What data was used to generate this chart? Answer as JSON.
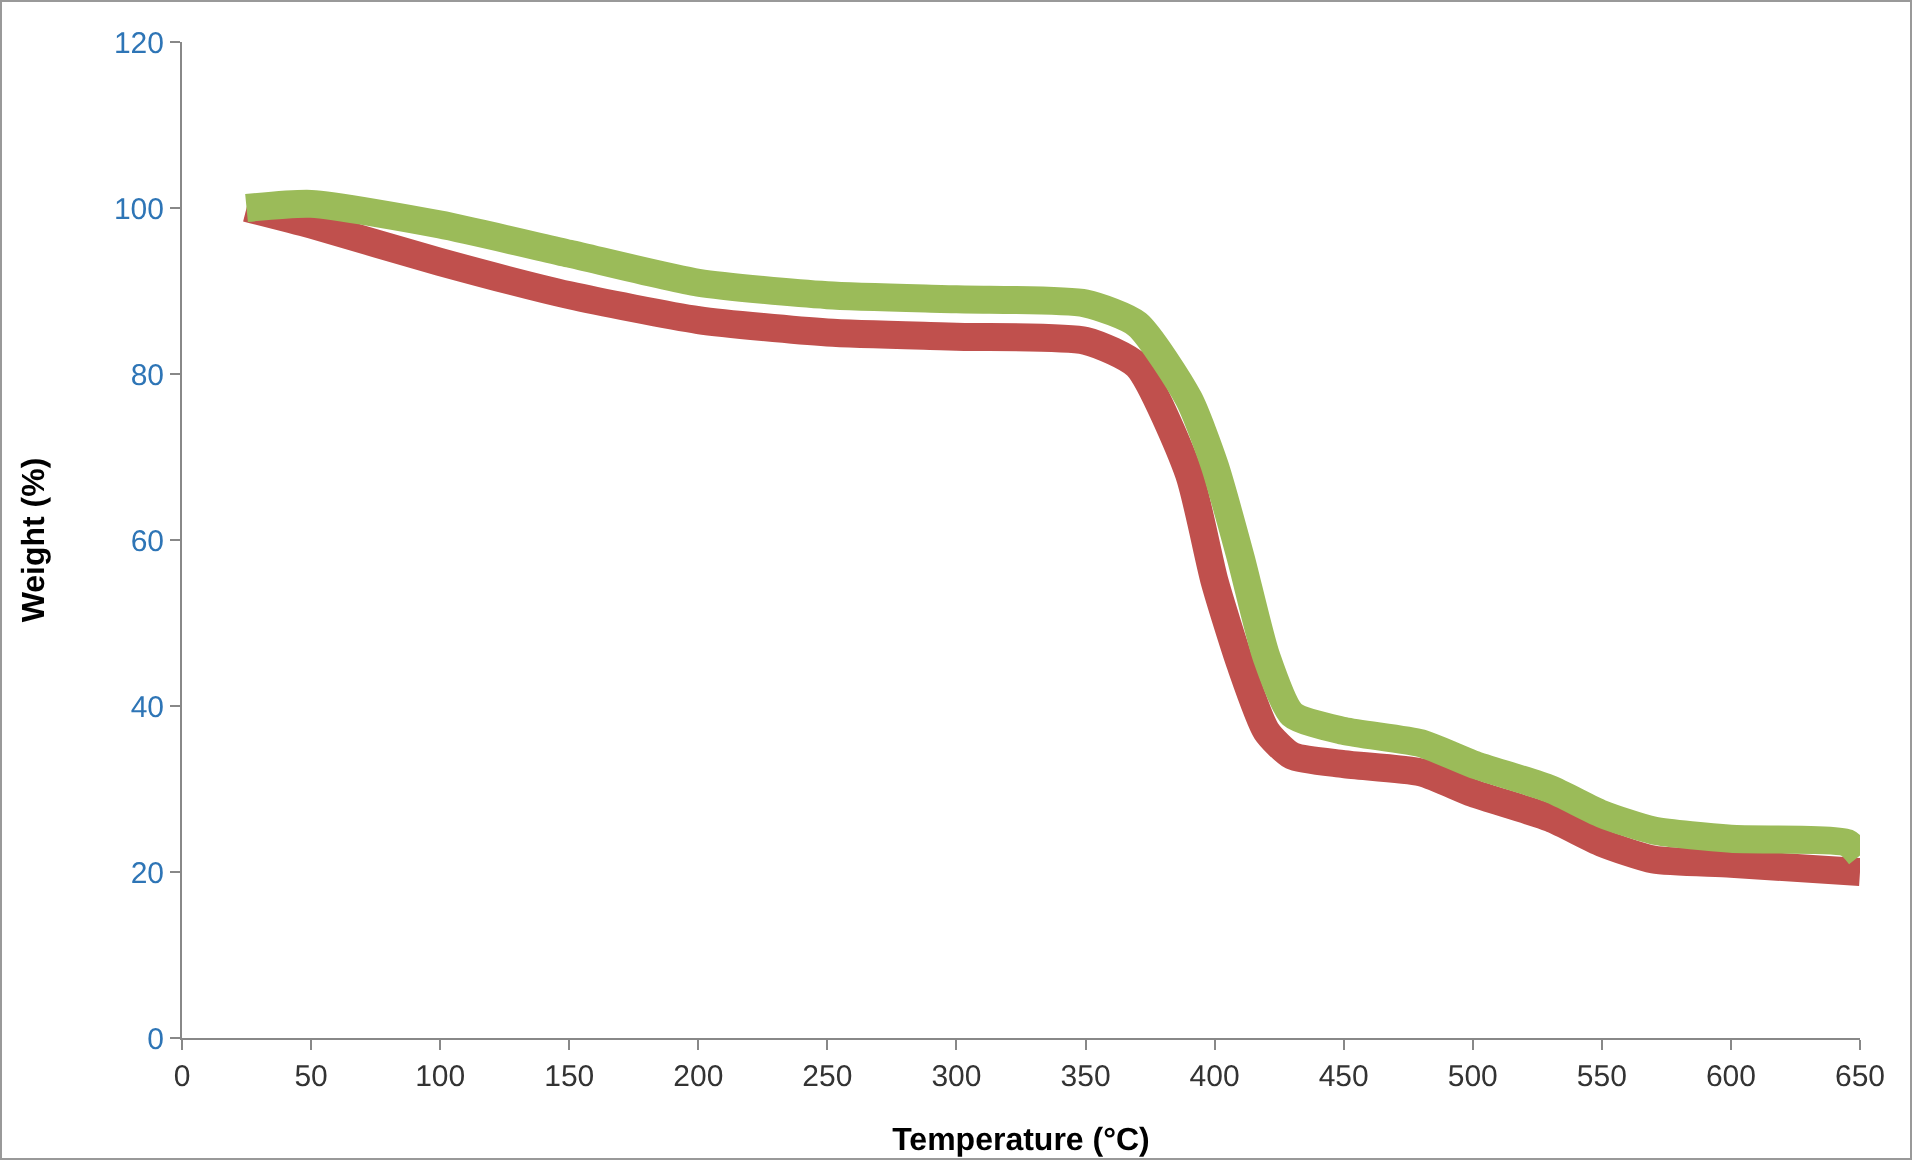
{
  "chart_data": {
    "type": "line",
    "xlabel": "Temperature (°C)",
    "ylabel": "Weight (%)",
    "xlim": [
      0,
      650
    ],
    "xticks": [
      0,
      50,
      100,
      150,
      200,
      250,
      300,
      350,
      400,
      450,
      500,
      550,
      600,
      650
    ],
    "ylim": [
      0,
      120
    ],
    "yticks": [
      0,
      20,
      40,
      60,
      80,
      100,
      120
    ],
    "grid": false,
    "marker": "none",
    "line_style": "solid",
    "series": [
      {
        "color": "#c0504d",
        "x": [
          25,
          50,
          100,
          150,
          200,
          250,
          300,
          350,
          370,
          390,
          400,
          410,
          420,
          430,
          450,
          480,
          500,
          530,
          550,
          570,
          600,
          650
        ],
        "values": [
          100,
          98,
          93.5,
          89.5,
          86.5,
          85,
          84.5,
          84,
          81,
          68,
          55,
          45,
          37,
          34,
          33,
          32,
          29.5,
          26.5,
          23.5,
          21.5,
          21,
          20
        ]
      },
      {
        "color": "#9bbb59",
        "x": [
          25,
          50,
          100,
          150,
          200,
          250,
          300,
          350,
          370,
          390,
          400,
          410,
          420,
          430,
          450,
          480,
          500,
          530,
          550,
          570,
          600,
          645,
          650
        ],
        "values": [
          100,
          100.5,
          98,
          94.5,
          91,
          89.5,
          89,
          88.5,
          86,
          77,
          69,
          58,
          46,
          39,
          37,
          35.5,
          33,
          30,
          27,
          25,
          24,
          23.5,
          22
        ]
      }
    ]
  }
}
